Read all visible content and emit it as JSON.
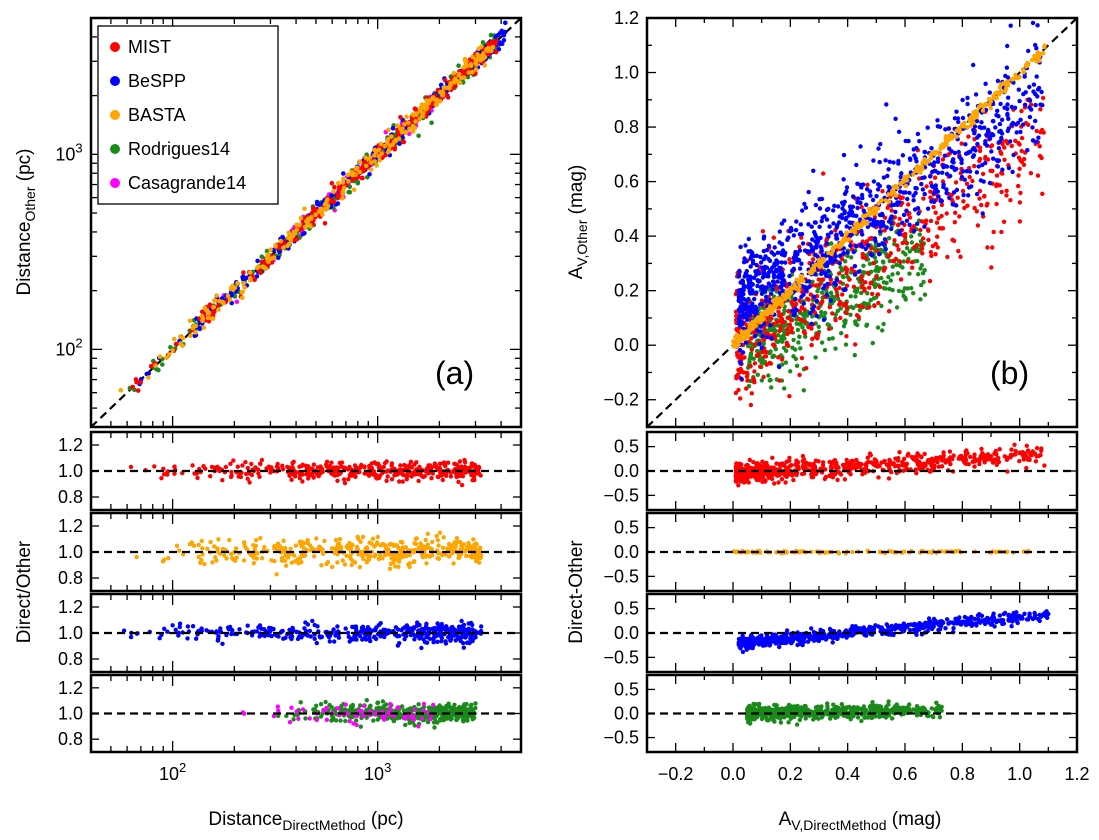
{
  "colors": {
    "MIST": "#ff0000",
    "BeSPP": "#0000ff",
    "BASTA": "#ffa500",
    "Rodrigues14": "#1a8a1a",
    "Casagrande14": "#ff00ff"
  },
  "legend": [
    "MIST",
    "BeSPP",
    "BASTA",
    "Rodrigues14",
    "Casagrande14"
  ],
  "chart_data": [
    {
      "id": "a",
      "type": "scatter",
      "panel_label": "(a)",
      "xscale": "log",
      "xlim": [
        40,
        5000
      ],
      "ylim": [
        40,
        5000
      ],
      "xlabel": {
        "main": "Distance",
        "sub": "DirectMethod",
        "unit": " (pc)"
      },
      "ylabel": {
        "main": "Distance",
        "sub": "Other",
        "unit": " (pc)"
      },
      "xtick_labels": [
        {
          "base": "10",
          "exp": "2",
          "value": 100
        },
        {
          "base": "10",
          "exp": "3",
          "value": 1000
        }
      ],
      "ytick_labels": [
        {
          "base": "10",
          "exp": "2",
          "value": 100
        },
        {
          "base": "10",
          "exp": "3",
          "value": 1000
        }
      ],
      "reference_line": "y = x",
      "series": [
        "MIST",
        "BeSPP",
        "BASTA",
        "Rodrigues14",
        "Casagrande14"
      ],
      "trend": "all series lie along y = x from ~50 pc to ~4000 pc"
    },
    {
      "id": "b",
      "type": "scatter",
      "panel_label": "(b)",
      "xlim": [
        -0.3,
        1.2
      ],
      "ylim": [
        -0.3,
        1.2
      ],
      "xlabel": {
        "main": "A",
        "sub": "V,DirectMethod",
        "unit": " (mag)"
      },
      "ylabel": {
        "main": "A",
        "sub": "V,Other",
        "unit": " (mag)"
      },
      "xticks": [
        "−0.2",
        "0.0",
        "0.2",
        "0.4",
        "0.6",
        "0.8",
        "1.0",
        "1.2"
      ],
      "yticks": [
        "−0.2",
        "0.0",
        "0.2",
        "0.4",
        "0.6",
        "0.8",
        "1.0",
        "1.2"
      ],
      "reference_line": "y = x",
      "series": [
        "MIST",
        "BeSPP",
        "BASTA",
        "Rodrigues14"
      ],
      "trend": "BASTA on y = x; BeSPP above (~0.1–0.5 at x 0.05–0.3); MIST and Rodrigues14 scattered below/around"
    },
    {
      "id": "ratio",
      "type": "scatter",
      "ylabel": "Direct/Other",
      "yticks": [
        "1.2",
        "1.0",
        "0.8"
      ],
      "ylim": [
        0.7,
        1.3
      ],
      "reference_line": 1.0,
      "rows": [
        [
          "MIST"
        ],
        [
          "BASTA"
        ],
        [
          "BeSPP"
        ],
        [
          "Rodrigues14",
          "Casagrande14"
        ]
      ]
    },
    {
      "id": "diff",
      "type": "scatter",
      "ylabel": "Direct-Other",
      "yticks": [
        "0.5",
        "0.0",
        "−0.5"
      ],
      "ylim": [
        -0.8,
        0.8
      ],
      "reference_line": 0.0,
      "rows": [
        [
          "MIST"
        ],
        [
          "BASTA"
        ],
        [
          "BeSPP"
        ],
        [
          "Rodrigues14"
        ]
      ]
    }
  ]
}
